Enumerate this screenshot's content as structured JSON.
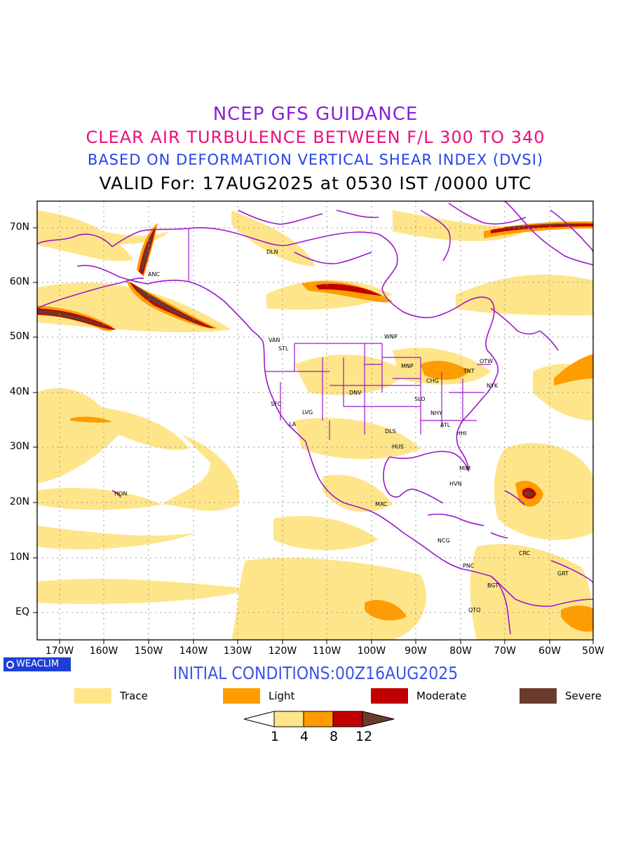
{
  "titles": {
    "line1": "NCEP GFS GUIDANCE",
    "line2": "CLEAR AIR TURBULENCE BETWEEN F/L 300 TO 340",
    "line3": "BASED ON DEFORMATION VERTICAL SHEAR INDEX (DVSI)",
    "line4": "VALID For: 17AUG2025 at 0530 IST /0000 UTC"
  },
  "colors": {
    "line1": "#8b1fd9",
    "line2": "#e8127a",
    "line3": "#2244ee",
    "initial": "#3a55e6",
    "boundary": "#9a19c9",
    "trace": "#ffe58a",
    "light": "#ff9c00",
    "moderate": "#c00000",
    "severe": "#6b3a2c"
  },
  "axes": {
    "lat_labels": [
      "70N",
      "60N",
      "50N",
      "40N",
      "30N",
      "20N",
      "10N",
      "EQ"
    ],
    "lon_labels": [
      "170W",
      "160W",
      "150W",
      "140W",
      "130W",
      "120W",
      "110W",
      "100W",
      "90W",
      "80W",
      "70W",
      "60W",
      "50W"
    ]
  },
  "cities": [
    "ANC",
    "DLN",
    "VAN",
    "STL",
    "WNP",
    "OTW",
    "TNT",
    "NYK",
    "MNP",
    "CHG",
    "DNV",
    "SLO",
    "SFC",
    "LVG",
    "LA",
    "NHY",
    "ATL",
    "DLS",
    "HHI",
    "HUS",
    "MIM",
    "HVN",
    "MXC",
    "HON",
    "NCG",
    "CRC",
    "GRT",
    "PNC",
    "BGT",
    "QTO"
  ],
  "badge": "WEACLIM",
  "initial_conditions": "INITIAL CONDITIONS:00Z16AUG2025",
  "legend": {
    "trace": "Trace",
    "light": "Light",
    "moderate": "Moderate",
    "severe": "Severe"
  },
  "scale": {
    "ticks": [
      "1",
      "4",
      "8",
      "12"
    ]
  }
}
